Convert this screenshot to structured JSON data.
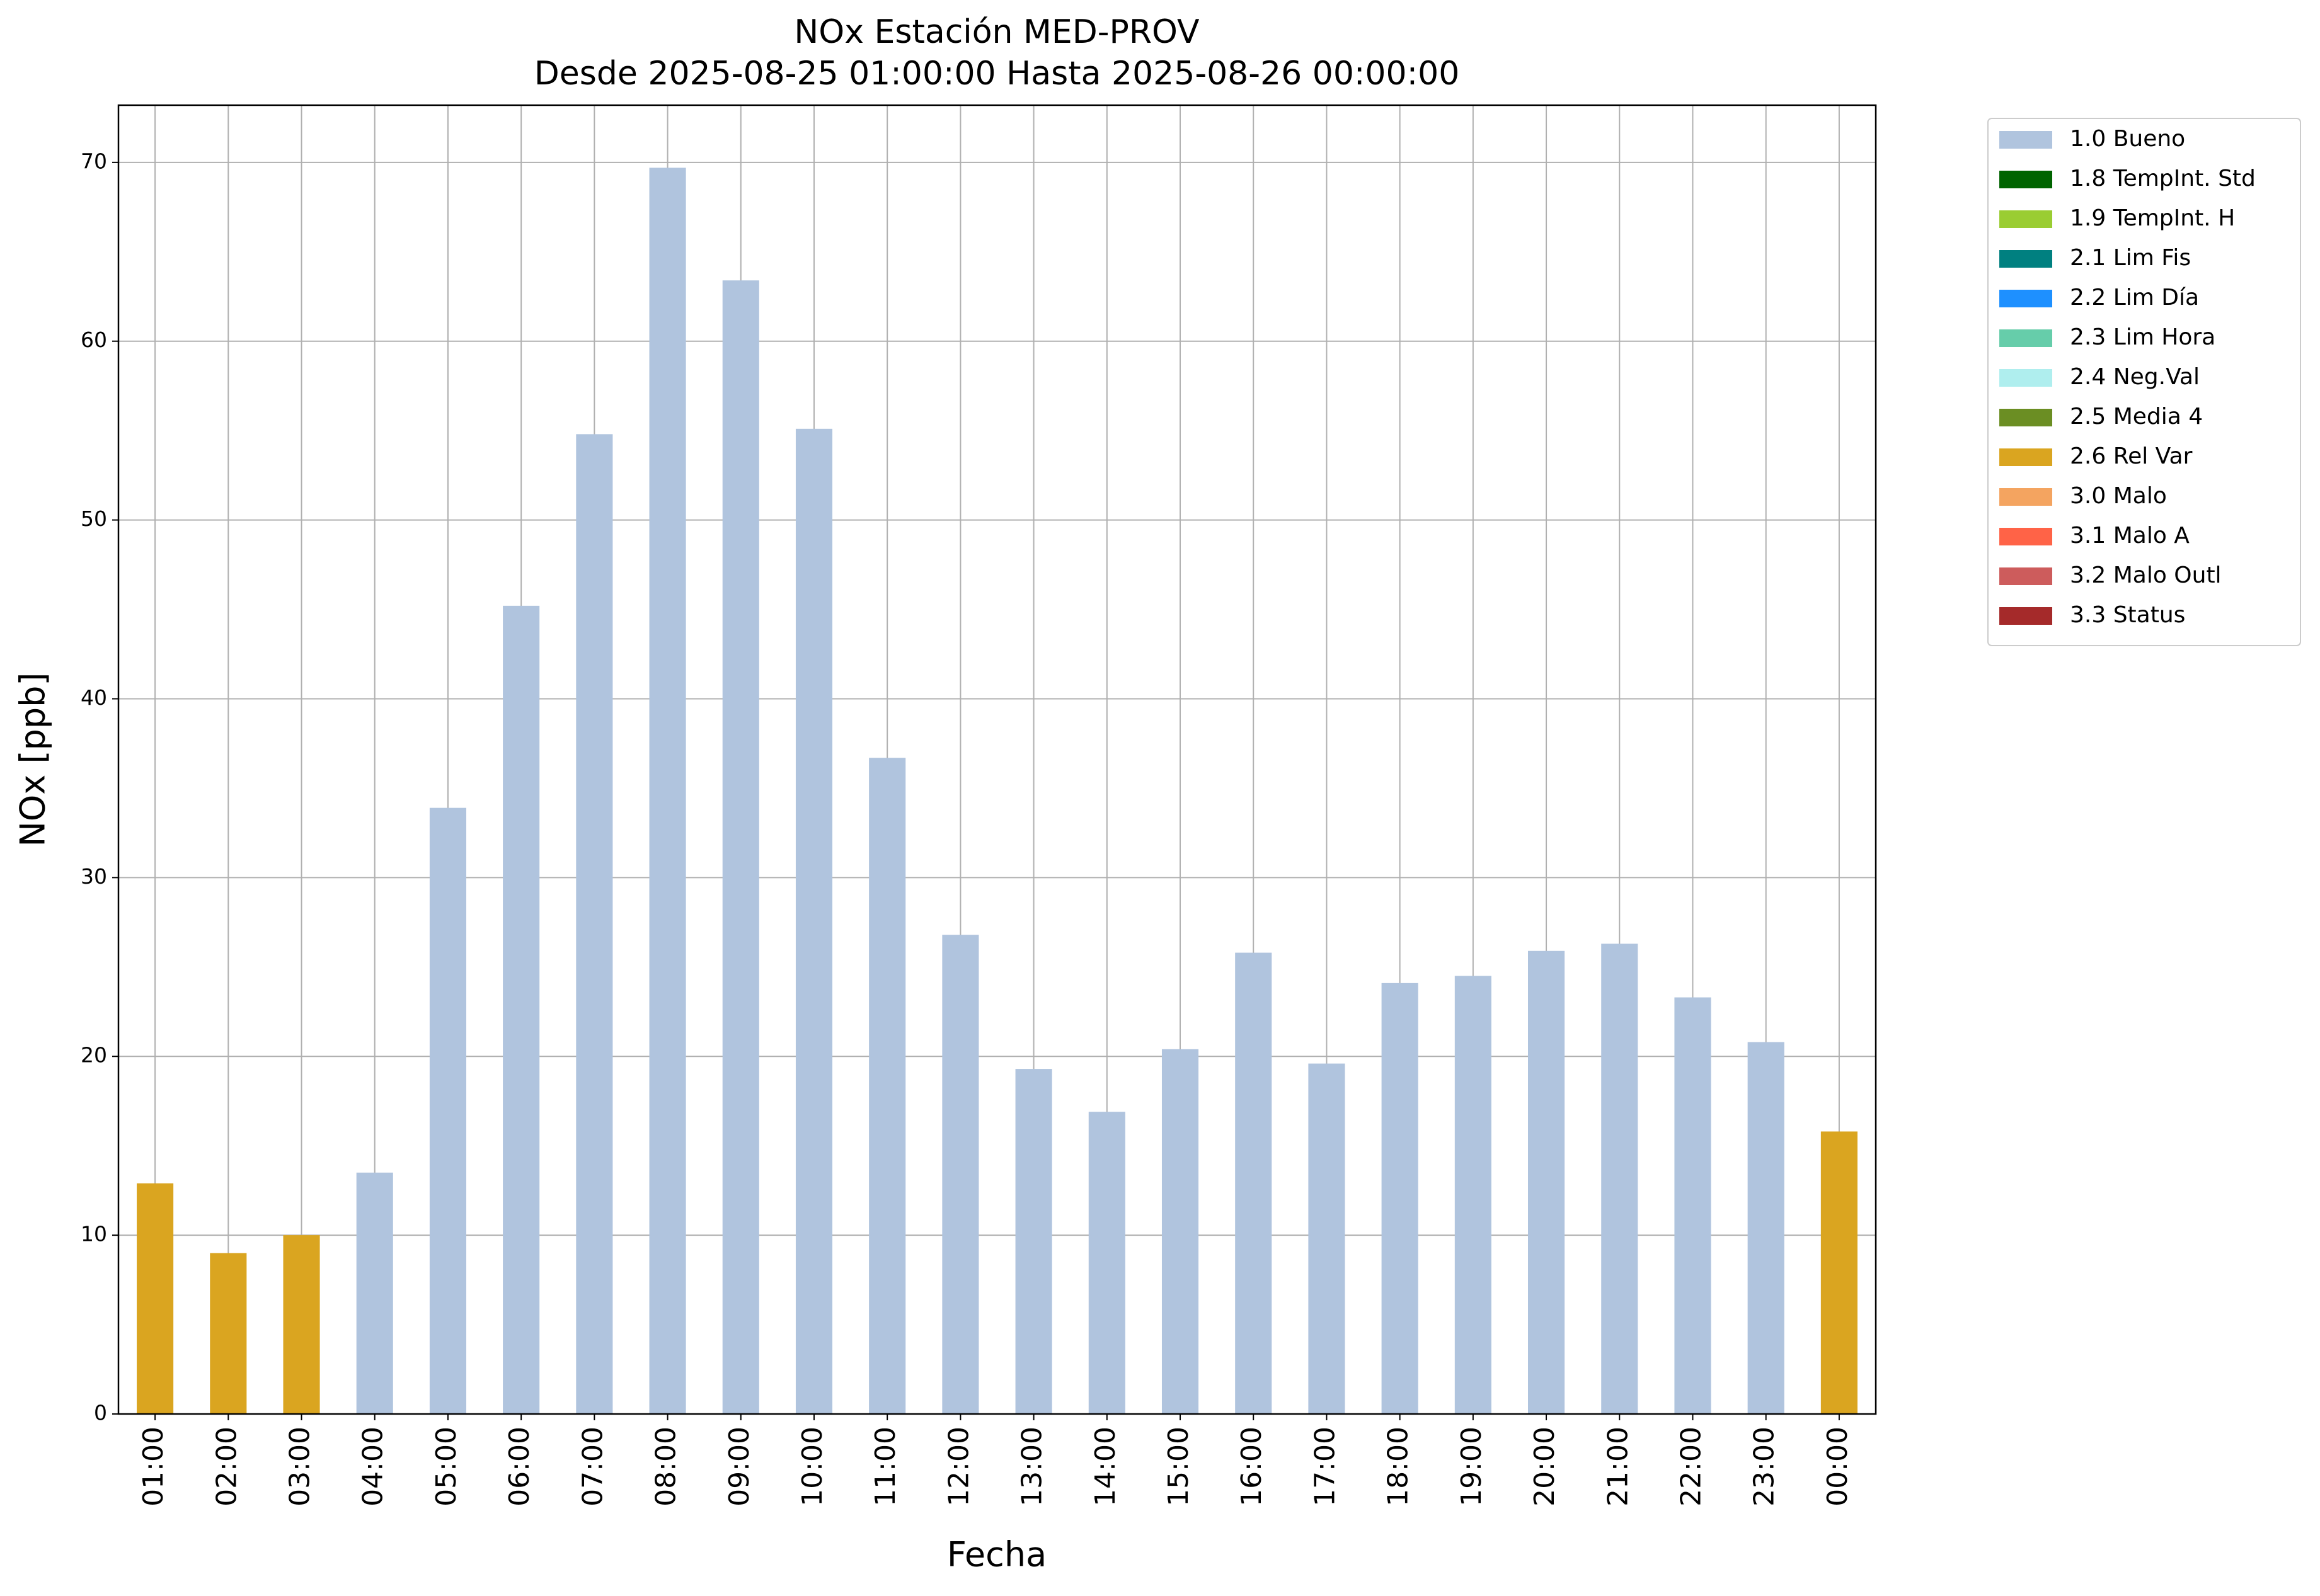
{
  "chart_data": {
    "type": "bar",
    "stacked": true,
    "title": "NOx Estación MED-PROV",
    "subtitle": "Desde 2025-08-25 01:00:00 Hasta 2025-08-26 00:00:00",
    "x_label": "Fecha",
    "y_label": "NOx [ppb]",
    "categories": [
      "01:00",
      "02:00",
      "03:00",
      "04:00",
      "05:00",
      "06:00",
      "07:00",
      "08:00",
      "09:00",
      "10:00",
      "11:00",
      "12:00",
      "13:00",
      "14:00",
      "15:00",
      "16:00",
      "17:00",
      "18:00",
      "19:00",
      "20:00",
      "21:00",
      "22:00",
      "23:00",
      "00:00"
    ],
    "series": [
      {
        "name": "1.0 Bueno",
        "color": "#b0c4de",
        "values": [
          null,
          null,
          null,
          13.5,
          33.9,
          45.2,
          54.8,
          69.7,
          63.4,
          55.1,
          36.7,
          26.8,
          19.3,
          16.9,
          20.4,
          25.8,
          19.6,
          24.1,
          24.5,
          25.9,
          26.3,
          23.3,
          20.8,
          null
        ]
      },
      {
        "name": "1.8 TempInt. Std",
        "color": "#006400",
        "values": [
          null,
          null,
          null,
          null,
          null,
          null,
          null,
          null,
          null,
          null,
          null,
          null,
          null,
          null,
          null,
          null,
          null,
          null,
          null,
          null,
          null,
          null,
          null,
          null
        ]
      },
      {
        "name": "1.9 TempInt. H",
        "color": "#9acd32",
        "values": [
          null,
          null,
          null,
          null,
          null,
          null,
          null,
          null,
          null,
          null,
          null,
          null,
          null,
          null,
          null,
          null,
          null,
          null,
          null,
          null,
          null,
          null,
          null,
          null
        ]
      },
      {
        "name": "2.1 Lim Fis",
        "color": "#008080",
        "values": [
          null,
          null,
          null,
          null,
          null,
          null,
          null,
          null,
          null,
          null,
          null,
          null,
          null,
          null,
          null,
          null,
          null,
          null,
          null,
          null,
          null,
          null,
          null,
          null
        ]
      },
      {
        "name": "2.2 Lim Día",
        "color": "#1e90ff",
        "values": [
          null,
          null,
          null,
          null,
          null,
          null,
          null,
          null,
          null,
          null,
          null,
          null,
          null,
          null,
          null,
          null,
          null,
          null,
          null,
          null,
          null,
          null,
          null,
          null
        ]
      },
      {
        "name": "2.3 Lim Hora",
        "color": "#66cdaa",
        "values": [
          null,
          null,
          null,
          null,
          null,
          null,
          null,
          null,
          null,
          null,
          null,
          null,
          null,
          null,
          null,
          null,
          null,
          null,
          null,
          null,
          null,
          null,
          null,
          null
        ]
      },
      {
        "name": "2.4 Neg.Val",
        "color": "#afeeee",
        "values": [
          null,
          null,
          null,
          null,
          null,
          null,
          null,
          null,
          null,
          null,
          null,
          null,
          null,
          null,
          null,
          null,
          null,
          null,
          null,
          null,
          null,
          null,
          null,
          null
        ]
      },
      {
        "name": "2.5 Media 4",
        "color": "#6b8e23",
        "values": [
          null,
          null,
          null,
          null,
          null,
          null,
          null,
          null,
          null,
          null,
          null,
          null,
          null,
          null,
          null,
          null,
          null,
          null,
          null,
          null,
          null,
          null,
          null,
          null
        ]
      },
      {
        "name": "2.6 Rel Var",
        "color": "#daa520",
        "values": [
          12.9,
          9.0,
          10.0,
          null,
          null,
          null,
          null,
          null,
          null,
          null,
          null,
          null,
          null,
          null,
          null,
          null,
          null,
          null,
          null,
          null,
          null,
          null,
          null,
          15.8
        ]
      },
      {
        "name": "3.0 Malo",
        "color": "#f4a460",
        "values": [
          null,
          null,
          null,
          null,
          null,
          null,
          null,
          null,
          null,
          null,
          null,
          null,
          null,
          null,
          null,
          null,
          null,
          null,
          null,
          null,
          null,
          null,
          null,
          null
        ]
      },
      {
        "name": "3.1 Malo A",
        "color": "#ff6347",
        "values": [
          null,
          null,
          null,
          null,
          null,
          null,
          null,
          null,
          null,
          null,
          null,
          null,
          null,
          null,
          null,
          null,
          null,
          null,
          null,
          null,
          null,
          null,
          null,
          null
        ]
      },
      {
        "name": "3.2 Malo Outl",
        "color": "#cd5c5c",
        "values": [
          null,
          null,
          null,
          null,
          null,
          null,
          null,
          null,
          null,
          null,
          null,
          null,
          null,
          null,
          null,
          null,
          null,
          null,
          null,
          null,
          null,
          null,
          null,
          null
        ]
      },
      {
        "name": "3.3 Status",
        "color": "#a52a2a",
        "values": [
          null,
          null,
          null,
          null,
          null,
          null,
          null,
          null,
          null,
          null,
          null,
          null,
          null,
          null,
          null,
          null,
          null,
          null,
          null,
          null,
          null,
          null,
          null,
          null
        ]
      }
    ],
    "ylim": [
      0,
      73.2
    ],
    "yticks": [
      0,
      10,
      20,
      30,
      40,
      50,
      60,
      70
    ],
    "grid": true,
    "legend": "outside-upper-right"
  }
}
